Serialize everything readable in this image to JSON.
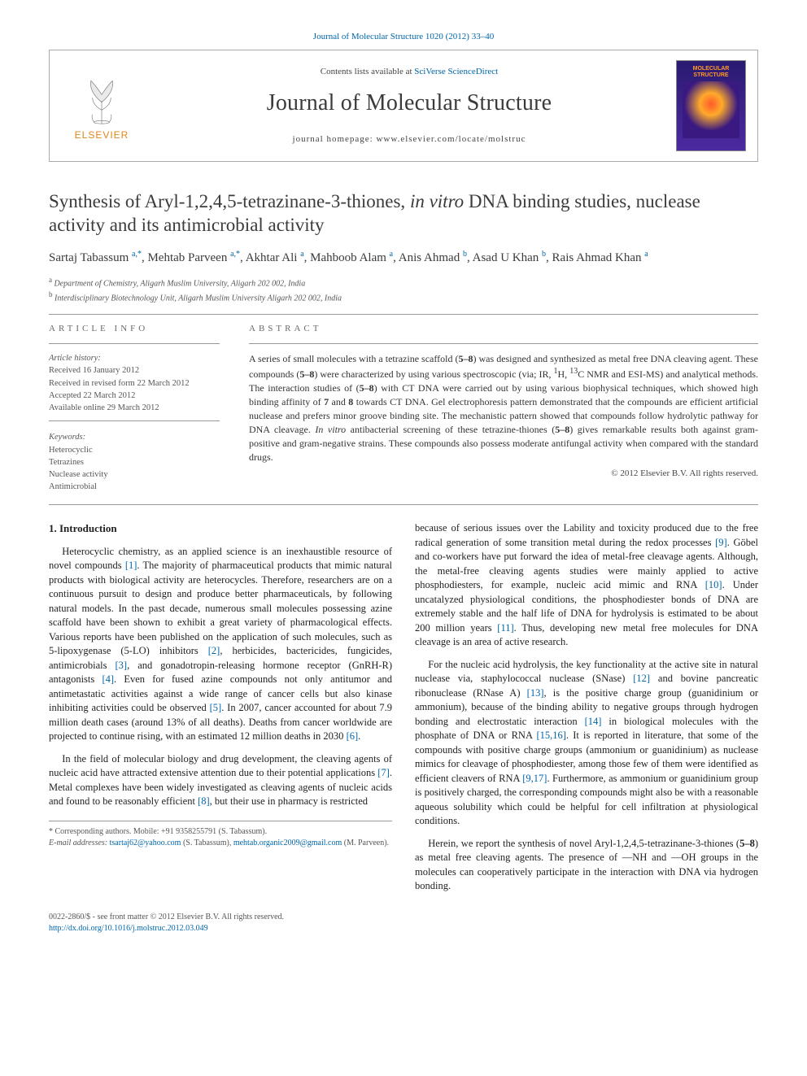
{
  "top_citation": "Journal of Molecular Structure 1020 (2012) 33–40",
  "banner": {
    "contents_prefix": "Contents lists available at ",
    "contents_link": "SciVerse ScienceDirect",
    "journal_name": "Journal of Molecular Structure",
    "homepage_label": "journal homepage: www.elsevier.com/locate/molstruc",
    "publisher_word": "ELSEVIER",
    "cover_title": "MOLECULAR STRUCTURE"
  },
  "article": {
    "title_pre": "Synthesis of Aryl-1,2,4,5-tetrazinane-3-thiones, ",
    "title_em": "in vitro",
    "title_post": " DNA binding studies, nuclease activity and its antimicrobial activity",
    "authors_html": "Sartaj Tabassum <sup>a,*</sup>, Mehtab Parveen <sup>a,*</sup>, Akhtar Ali <sup>a</sup>, Mahboob Alam <sup>a</sup>, Anis Ahmad <sup>b</sup>, Asad U Khan <sup>b</sup>, Rais Ahmad Khan <sup>a</sup>",
    "affiliations": [
      {
        "sup": "a",
        "text": "Department of Chemistry, Aligarh Muslim University, Aligarh 202 002, India"
      },
      {
        "sup": "b",
        "text": "Interdisciplinary Biotechnology Unit, Aligarh Muslim University Aligarh 202 002, India"
      }
    ]
  },
  "info": {
    "article_info_label": "ARTICLE INFO",
    "abstract_label": "ABSTRACT",
    "history_label": "Article history:",
    "history": [
      "Received 16 January 2012",
      "Received in revised form 22 March 2012",
      "Accepted 22 March 2012",
      "Available online 29 March 2012"
    ],
    "keywords_label": "Keywords:",
    "keywords": [
      "Heterocyclic",
      "Tetrazines",
      "Nuclease activity",
      "Antimicrobial"
    ],
    "abstract": "A series of small molecules with a tetrazine scaffold (5–8) was designed and synthesized as metal free DNA cleaving agent. These compounds (5–8) were characterized by using various spectroscopic (via; IR, 1H, 13C NMR and ESI-MS) and analytical methods. The interaction studies of (5–8) with CT DNA were carried out by using various biophysical techniques, which showed high binding affinity of 7 and 8 towards CT DNA. Gel electrophoresis pattern demonstrated that the compounds are efficient artificial nuclease and prefers minor groove binding site. The mechanistic pattern showed that compounds follow hydrolytic pathway for DNA cleavage. In vitro antibacterial screening of these tetrazine-thiones (5–8) gives remarkable results both against gram-positive and gram-negative strains. These compounds also possess moderate antifungal activity when compared with the standard drugs.",
    "copyright": "© 2012 Elsevier B.V. All rights reserved."
  },
  "body": {
    "intro_heading": "1. Introduction",
    "p1": "Heterocyclic chemistry, as an applied science is an inexhaustible resource of novel compounds [1]. The majority of pharmaceutical products that mimic natural products with biological activity are heterocycles. Therefore, researchers are on a continuous pursuit to design and produce better pharmaceuticals, by following natural models. In the past decade, numerous small molecules possessing azine scaffold have been shown to exhibit a great variety of pharmacological effects. Various reports have been published on the application of such molecules, such as 5-lipoxygenase (5-LO) inhibitors [2], herbicides, bactericides, fungicides, antimicrobials [3], and gonadotropin-releasing hormone receptor (GnRH-R) antagonists [4]. Even for fused azine compounds not only antitumor and antimetastatic activities against a wide range of cancer cells but also kinase inhibiting activities could be observed [5]. In 2007, cancer accounted for about 7.9 million death cases (around 13% of all deaths). Deaths from cancer worldwide are projected to continue rising, with an estimated 12 million deaths in 2030 [6].",
    "p2": "In the field of molecular biology and drug development, the cleaving agents of nucleic acid have attracted extensive attention due to their potential applications [7]. Metal complexes have been widely investigated as cleaving agents of nucleic acids and found to be reasonably efficient [8], but their use in pharmacy is restricted",
    "p3": "because of serious issues over the Lability and toxicity produced due to the free radical generation of some transition metal during the redox processes [9]. Göbel and co-workers have put forward the idea of metal-free cleavage agents. Although, the metal-free cleaving agents studies were mainly applied to active phosphodiesters, for example, nucleic acid mimic and RNA [10]. Under uncatalyzed physiological conditions, the phosphodiester bonds of DNA are extremely stable and the half life of DNA for hydrolysis is estimated to be about 200 million years [11]. Thus, developing new metal free molecules for DNA cleavage is an area of active research.",
    "p4": "For the nucleic acid hydrolysis, the key functionality at the active site in natural nuclease via, staphylococcal nuclease (SNase) [12] and bovine pancreatic ribonuclease (RNase A) [13], is the positive charge group (guanidinium or ammonium), because of the binding ability to negative groups through hydrogen bonding and electrostatic interaction [14] in biological molecules with the phosphate of DNA or RNA [15,16]. It is reported in literature, that some of the compounds with positive charge groups (ammonium or guanidinium) as nuclease mimics for cleavage of phosphodiester, among those few of them were identified as efficient cleavers of RNA [9,17]. Furthermore, as ammonium or guanidinium group is positively charged, the corresponding compounds might also be with a reasonable aqueous solubility which could be helpful for cell infiltration at physiological conditions.",
    "p5": "Herein, we report the synthesis of novel Aryl-1,2,4,5-tetrazinane-3-thiones (5–8) as metal free cleaving agents. The presence of —NH and —OH groups in the molecules can cooperatively participate in the interaction with DNA via hydrogen bonding."
  },
  "footnotes": {
    "corr": "* Corresponding authors. Mobile: +91 9358255791 (S. Tabassum).",
    "emails_label": "E-mail addresses:",
    "email1": "tsartaj62@yahoo.com",
    "email1_sfx": " (S. Tabassum), ",
    "email2": "mehtab.organic2009@gmail.com",
    "email2_sfx": " (M. Parveen)."
  },
  "bottom": {
    "line1": "0022-2860/$ - see front matter © 2012 Elsevier B.V. All rights reserved.",
    "doi": "http://dx.doi.org/10.1016/j.molstruc.2012.03.049"
  },
  "colors": {
    "link": "#0066aa",
    "text": "#222222",
    "muted": "#555555",
    "rule": "#999999",
    "elsevier_orange": "#e0851a",
    "cover_bg_top": "#2a1a70",
    "cover_bg_bottom": "#4b2aa0",
    "cover_text": "#ff9a2a"
  },
  "typography": {
    "base_family": "Times New Roman, serif",
    "title_pt": 23,
    "journal_pt": 28,
    "body_pt": 12.5,
    "abstract_pt": 12,
    "small_pt": 10
  }
}
